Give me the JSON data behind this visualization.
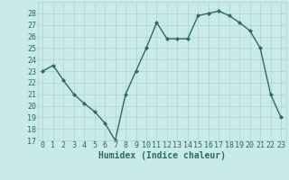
{
  "x": [
    0,
    1,
    2,
    3,
    4,
    5,
    6,
    7,
    8,
    9,
    10,
    11,
    12,
    13,
    14,
    15,
    16,
    17,
    18,
    19,
    20,
    21,
    22,
    23
  ],
  "y": [
    23,
    23.5,
    22.2,
    21,
    20.2,
    19.5,
    18.5,
    17,
    21,
    23,
    25,
    27.2,
    25.8,
    25.8,
    25.8,
    27.8,
    28,
    28.2,
    27.8,
    27.2,
    26.5,
    25,
    21,
    19
  ],
  "line_color": "#2d6b5e",
  "marker": "D",
  "marker_size": 2,
  "line_width": 1.0,
  "bg_color": "#c8eae8",
  "grid_color": "#b0d4d0",
  "xlabel": "Humidex (Indice chaleur)",
  "xlabel_fontsize": 7,
  "ylim": [
    17,
    29
  ],
  "xlim": [
    -0.5,
    23.5
  ],
  "yticks": [
    17,
    18,
    19,
    20,
    21,
    22,
    23,
    24,
    25,
    26,
    27,
    28
  ],
  "xticks": [
    0,
    1,
    2,
    3,
    4,
    5,
    6,
    7,
    8,
    9,
    10,
    11,
    12,
    13,
    14,
    15,
    16,
    17,
    18,
    19,
    20,
    21,
    22,
    23
  ],
  "tick_fontsize": 6,
  "tick_color": "#2d6b5e"
}
